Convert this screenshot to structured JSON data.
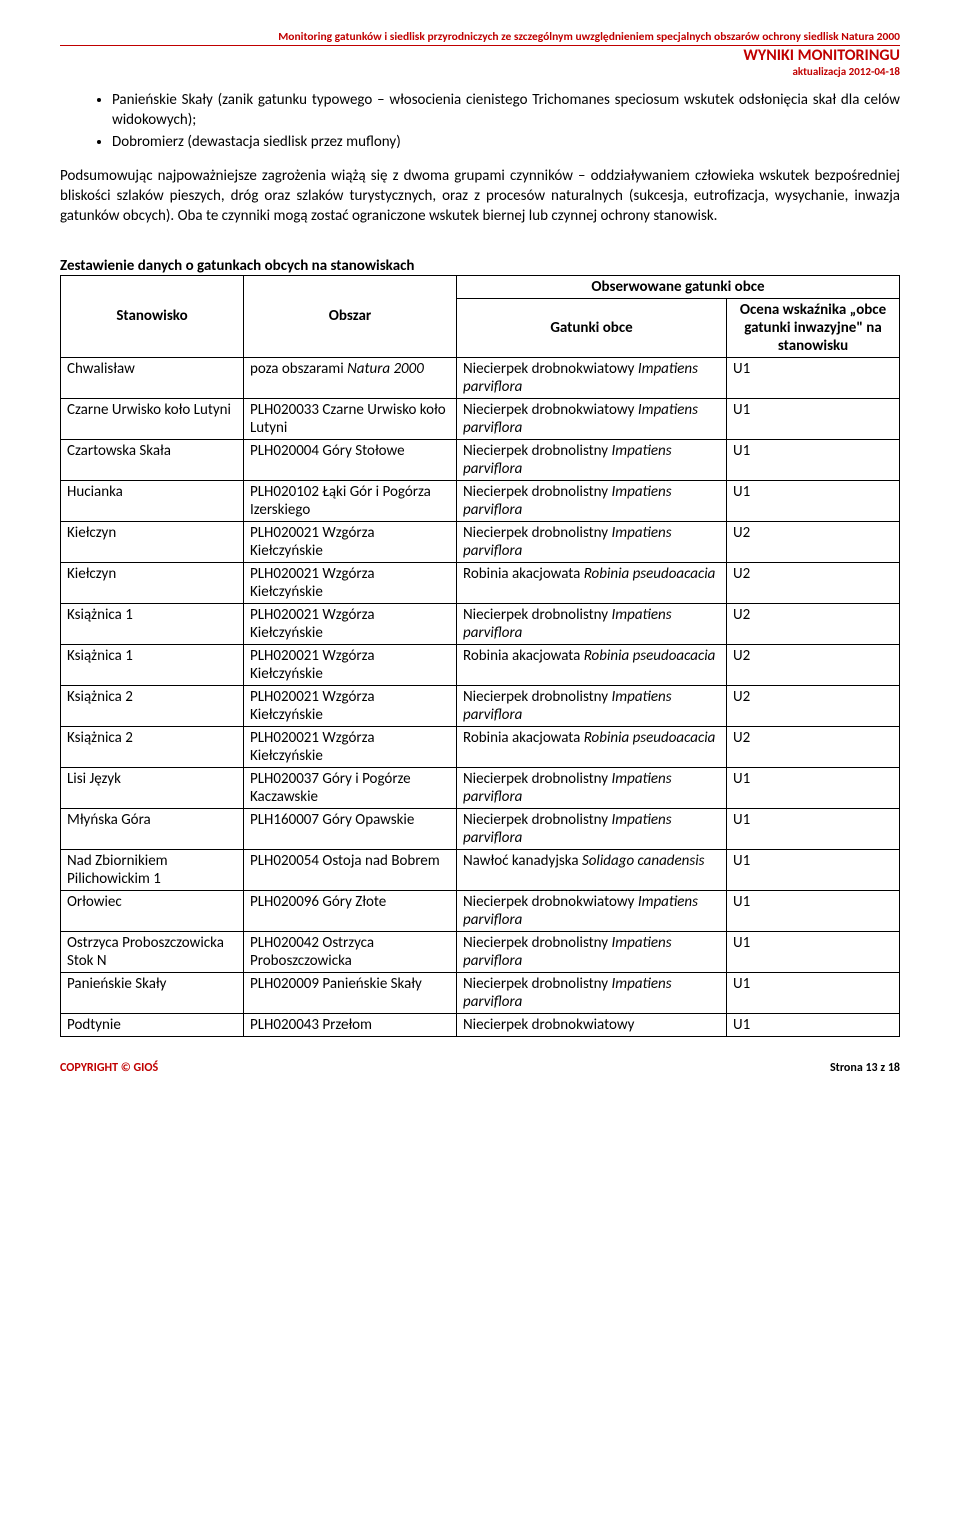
{
  "header": {
    "line1": "Monitoring gatunków i siedlisk przyrodniczych ze szczególnym uwzględnieniem specjalnych obszarów ochrony siedlisk Natura 2000",
    "line2": "WYNIKI MONITORINGU",
    "line3": "aktualizacja 2012-04-18"
  },
  "bullets": [
    "Panieńskie Skały (zanik gatunku typowego – włosocienia cienistego Trichomanes speciosum wskutek odsłonięcia skał dla celów widokowych);",
    "Dobromierz (dewastacja siedlisk przez muflony)"
  ],
  "paragraph": "Podsumowując najpoważniejsze zagrożenia wiążą się z dwoma grupami czynników – oddziaływaniem człowieka wskutek bezpośredniej bliskości szlaków pieszych, dróg oraz szlaków turystycznych, oraz z procesów naturalnych (sukcesja, eutrofizacja, wysychanie, inwazja gatunków obcych). Oba te czynniki mogą zostać ograniczone wskutek biernej lub czynnej ochrony stanowisk.",
  "sectionTitle": "Zestawienie danych o gatunkach obcych na stanowiskach",
  "tableHeaders": {
    "stanowisko": "Stanowisko",
    "obszar": "Obszar",
    "obserwowane": "Obserwowane gatunki obce",
    "gatunki": "Gatunki obce",
    "ocena": "Ocena wskaźnika „obce gatunki inwazyjne\" na stanowisku"
  },
  "rows": [
    {
      "stan": "Chwalisław",
      "obszar_pre": "poza obszarami ",
      "obszar_it": "Natura 2000",
      "gat": "Niecierpek drobnokwiatowy ",
      "gat_it": "Impatiens parviflora",
      "ocena": "U1"
    },
    {
      "stan": "Czarne Urwisko koło Lutyni",
      "obszar_pre": "PLH020033 Czarne Urwisko koło Lutyni",
      "obszar_it": "",
      "gat": "Niecierpek drobnokwiatowy ",
      "gat_it": "Impatiens parviflora",
      "ocena": "U1"
    },
    {
      "stan": "Czartowska Skała",
      "obszar_pre": "PLH020004 Góry Stołowe",
      "obszar_it": "",
      "gat": "Niecierpek drobnolistny ",
      "gat_it": "Impatiens parviflora",
      "ocena": "U1"
    },
    {
      "stan": "Hucianka",
      "obszar_pre": "PLH020102 Łąki Gór i Pogórza Izerskiego",
      "obszar_it": "",
      "gat": "Niecierpek drobnolistny ",
      "gat_it": "Impatiens parviflora",
      "ocena": "U1"
    },
    {
      "stan": "Kiełczyn",
      "obszar_pre": "PLH020021 Wzgórza Kiełczyńskie",
      "obszar_it": "",
      "gat": "Niecierpek drobnolistny ",
      "gat_it": "Impatiens parviflora",
      "ocena": "U2"
    },
    {
      "stan": "Kiełczyn",
      "obszar_pre": "PLH020021 Wzgórza Kiełczyńskie",
      "obszar_it": "",
      "gat": "Robinia akacjowata ",
      "gat_it": "Robinia pseudoacacia",
      "ocena": "U2"
    },
    {
      "stan": "Książnica 1",
      "obszar_pre": "PLH020021 Wzgórza Kiełczyńskie",
      "obszar_it": "",
      "gat": "Niecierpek drobnolistny ",
      "gat_it": "Impatiens parviflora",
      "ocena": "U2"
    },
    {
      "stan": "Książnica 1",
      "obszar_pre": "PLH020021 Wzgórza Kiełczyńskie",
      "obszar_it": "",
      "gat": "Robinia akacjowata ",
      "gat_it": "Robinia pseudoacacia",
      "ocena": "U2"
    },
    {
      "stan": "Książnica 2",
      "obszar_pre": "PLH020021 Wzgórza Kiełczyńskie",
      "obszar_it": "",
      "gat": "Niecierpek drobnolistny ",
      "gat_it": "Impatiens parviflora",
      "ocena": "U2"
    },
    {
      "stan": "Książnica 2",
      "obszar_pre": "PLH020021 Wzgórza Kiełczyńskie",
      "obszar_it": "",
      "gat": "Robinia akacjowata ",
      "gat_it": "Robinia pseudoacacia",
      "ocena": "U2"
    },
    {
      "stan": "Lisi Język",
      "obszar_pre": "PLH020037 Góry i Pogórze Kaczawskie",
      "obszar_it": "",
      "gat": "Niecierpek drobnolistny ",
      "gat_it": "Impatiens parviflora",
      "ocena": "U1"
    },
    {
      "stan": "Młyńska Góra",
      "obszar_pre": "PLH160007 Góry Opawskie",
      "obszar_it": "",
      "gat": "Niecierpek drobnolistny ",
      "gat_it": "Impatiens parviflora",
      "ocena": "U1"
    },
    {
      "stan": "Nad Zbiornikiem Pilichowickim 1",
      "obszar_pre": "PLH020054 Ostoja nad Bobrem",
      "obszar_it": "",
      "gat": "Nawłoć kanadyjska ",
      "gat_it": "Solidago canadensis",
      "ocena": "U1"
    },
    {
      "stan": "Orłowiec",
      "obszar_pre": "PLH020096 Góry Złote",
      "obszar_it": "",
      "gat": "Niecierpek drobnokwiatowy ",
      "gat_it": "Impatiens parviflora",
      "ocena": "U1"
    },
    {
      "stan": "Ostrzyca Proboszczowicka Stok N",
      "obszar_pre": "PLH020042 Ostrzyca Proboszczowicka",
      "obszar_it": "",
      "gat": "Niecierpek drobnolistny ",
      "gat_it": "Impatiens parviflora",
      "ocena": "U1"
    },
    {
      "stan": "Panieńskie Skały",
      "obszar_pre": "PLH020009 Panieńskie Skały",
      "obszar_it": "",
      "gat": "Niecierpek drobnolistny ",
      "gat_it": "Impatiens parviflora",
      "ocena": "U1"
    },
    {
      "stan": "Podtynie",
      "obszar_pre": "PLH020043 Przełom",
      "obszar_it": "",
      "gat": "Niecierpek drobnokwiatowy",
      "gat_it": "",
      "ocena": "U1"
    }
  ],
  "footer": {
    "left": "COPYRIGHT © GIOŚ",
    "right": "Strona 13 z 18"
  }
}
